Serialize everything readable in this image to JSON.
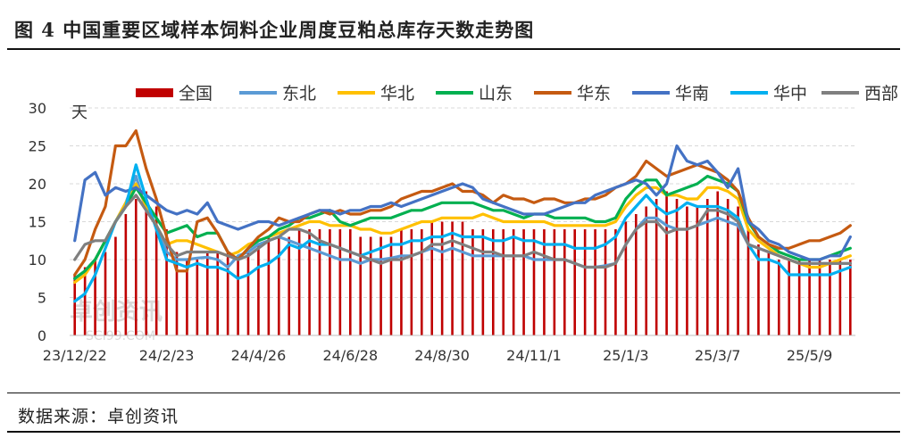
{
  "header": {
    "title": "图 4  中国重要区域样本饲料企业周度豆粕总库存天数走势图"
  },
  "footer": {
    "source": "数据来源：卓创资讯"
  },
  "watermark": {
    "line1": "卓创资讯",
    "line2": "SCI99.COM"
  },
  "chart_data": {
    "type": "bar+line",
    "unit": "天",
    "ylim": [
      0,
      30
    ],
    "yticks": [
      "0",
      "5",
      "10",
      "15",
      "20",
      "25",
      "30"
    ],
    "xtick_labels": [
      "23/12/22",
      "24/2/23",
      "24/4/26",
      "24/6/28",
      "24/8/30",
      "24/11/1",
      "25/1/3",
      "25/3/7",
      "25/5/9"
    ],
    "xtick_indices": [
      0,
      9,
      18,
      27,
      36,
      45,
      54,
      63,
      72
    ],
    "legend_position": "top",
    "grid": "horizontal dashed",
    "series": [
      {
        "name": "全国",
        "kind": "bar",
        "color": "#c00000",
        "values": [
          8,
          9,
          10,
          11,
          13,
          16,
          18,
          19,
          17,
          14,
          11,
          10,
          10,
          11,
          11,
          11,
          10,
          11,
          12,
          13,
          13,
          13,
          14,
          14,
          14,
          14,
          14,
          14,
          13,
          13,
          13,
          13,
          14,
          14,
          14,
          15,
          15,
          15,
          15,
          14,
          14,
          14,
          14,
          14,
          14,
          14,
          14,
          14,
          14,
          14,
          14,
          14,
          14,
          14,
          15,
          16,
          17,
          18,
          19,
          18,
          17,
          17,
          18,
          19,
          18,
          17,
          14,
          12,
          11,
          10,
          10,
          10,
          10,
          10,
          10,
          10,
          10
        ]
      },
      {
        "name": "东北",
        "kind": "line",
        "color": "#5b9bd5",
        "values": [
          7.5,
          8.5,
          10.0,
          12.5,
          15.0,
          17.5,
          21.0,
          16.5,
          14.5,
          11.0,
          10.0,
          10.0,
          10.2,
          10.3,
          10.0,
          9.0,
          10.5,
          11.0,
          12.0,
          12.5,
          13.0,
          12.5,
          12.0,
          11.5,
          11.0,
          10.5,
          10.0,
          10.0,
          9.5,
          10.0,
          10.0,
          10.2,
          10.5,
          10.5,
          11.0,
          11.5,
          11.0,
          11.5,
          11.0,
          10.5,
          10.5,
          10.5,
          10.5,
          10.5,
          10.5,
          10.0,
          10.0,
          10.0,
          10.0,
          9.5,
          9.0,
          9.0,
          9.2,
          9.5,
          12.0,
          14.0,
          15.5,
          15.5,
          14.5,
          14.0,
          14.0,
          14.5,
          15.0,
          15.5,
          15.0,
          14.5,
          12.0,
          11.5,
          11.0,
          10.5,
          10.0,
          9.5,
          9.5,
          9.5,
          9.5,
          9.5,
          9.5
        ]
      },
      {
        "name": "华北",
        "kind": "line",
        "color": "#ffc000",
        "values": [
          7.0,
          8.0,
          10.0,
          12.5,
          15.0,
          17.5,
          20.0,
          17.0,
          14.5,
          12.0,
          12.5,
          12.5,
          12.0,
          11.5,
          11.0,
          10.5,
          11.0,
          12.0,
          12.5,
          13.0,
          13.5,
          14.0,
          14.5,
          15.0,
          15.0,
          14.5,
          14.5,
          14.5,
          14.0,
          14.0,
          13.5,
          13.5,
          14.0,
          14.5,
          15.0,
          15.0,
          15.5,
          15.5,
          15.5,
          15.5,
          16.0,
          15.5,
          15.0,
          15.0,
          15.0,
          15.0,
          15.0,
          14.5,
          14.5,
          14.5,
          14.5,
          14.5,
          14.5,
          15.0,
          17.0,
          18.5,
          19.5,
          19.5,
          18.5,
          18.5,
          18.0,
          18.0,
          19.5,
          19.5,
          19.0,
          18.0,
          14.0,
          12.5,
          11.5,
          10.5,
          10.0,
          9.5,
          9.0,
          9.0,
          9.5,
          10.0,
          10.5
        ]
      },
      {
        "name": "山东",
        "kind": "line",
        "color": "#00b050",
        "values": [
          7.5,
          8.5,
          10.0,
          12.5,
          15.0,
          17.0,
          19.5,
          17.5,
          15.5,
          13.5,
          14.0,
          14.5,
          13.0,
          13.5,
          13.5,
          11.0,
          10.0,
          11.5,
          12.5,
          13.0,
          14.0,
          14.5,
          15.5,
          15.5,
          16.0,
          16.5,
          15.0,
          14.5,
          15.0,
          15.5,
          15.5,
          15.5,
          16.0,
          16.5,
          16.5,
          17.0,
          17.5,
          17.5,
          17.5,
          17.5,
          17.0,
          16.5,
          16.5,
          16.0,
          15.5,
          16.0,
          16.0,
          15.5,
          15.5,
          15.5,
          15.5,
          15.0,
          15.0,
          15.5,
          18.0,
          19.5,
          20.5,
          20.5,
          18.5,
          19.0,
          19.5,
          20.0,
          21.0,
          20.5,
          20.0,
          19.0,
          15.0,
          13.0,
          12.0,
          11.0,
          10.5,
          10.0,
          10.0,
          10.0,
          10.5,
          11.0,
          11.5
        ]
      },
      {
        "name": "华东",
        "kind": "line",
        "color": "#c55a11",
        "values": [
          8.0,
          10.0,
          14.0,
          17.0,
          25.0,
          25.0,
          27.0,
          22.0,
          18.0,
          13.0,
          8.5,
          8.5,
          15.0,
          15.5,
          13.5,
          11.0,
          10.0,
          11.5,
          13.0,
          14.0,
          15.5,
          15.0,
          15.0,
          16.0,
          16.5,
          16.0,
          16.5,
          16.0,
          16.0,
          16.5,
          16.5,
          17.0,
          18.0,
          18.5,
          19.0,
          19.0,
          19.5,
          20.0,
          19.0,
          19.0,
          18.5,
          17.5,
          18.5,
          18.0,
          18.0,
          17.5,
          18.0,
          18.0,
          17.5,
          17.5,
          18.0,
          18.0,
          18.5,
          19.5,
          20.0,
          21.0,
          23.0,
          22.0,
          21.0,
          21.5,
          22.0,
          22.5,
          22.0,
          21.5,
          20.5,
          19.0,
          15.5,
          13.0,
          12.0,
          11.5,
          11.5,
          12.0,
          12.5,
          12.5,
          13.0,
          13.5,
          14.5
        ]
      },
      {
        "name": "华南",
        "kind": "line",
        "color": "#4472c4",
        "values": [
          12.5,
          20.5,
          21.5,
          18.5,
          19.5,
          19.0,
          19.5,
          18.5,
          17.5,
          16.5,
          16.0,
          16.5,
          16.0,
          17.5,
          15.0,
          14.5,
          14.0,
          14.5,
          15.0,
          15.0,
          14.5,
          15.0,
          15.5,
          16.0,
          16.5,
          16.5,
          16.0,
          16.5,
          16.5,
          17.0,
          17.0,
          17.5,
          17.0,
          17.5,
          18.0,
          18.5,
          19.0,
          19.5,
          20.0,
          19.5,
          18.0,
          17.5,
          17.0,
          16.5,
          16.0,
          16.0,
          16.0,
          16.5,
          17.0,
          17.5,
          17.5,
          18.5,
          19.0,
          19.5,
          20.0,
          20.5,
          20.0,
          18.5,
          20.0,
          25.0,
          23.0,
          22.5,
          23.0,
          21.5,
          19.5,
          22.0,
          15.0,
          14.0,
          12.5,
          12.0,
          11.0,
          10.5,
          10.0,
          10.0,
          10.5,
          10.5,
          13.0
        ]
      },
      {
        "name": "华中",
        "kind": "line",
        "color": "#00b0f0",
        "values": [
          4.5,
          5.5,
          8.0,
          11.5,
          15.0,
          17.0,
          22.5,
          18.0,
          14.0,
          10.0,
          9.5,
          9.0,
          9.5,
          9.0,
          9.0,
          8.5,
          7.5,
          8.0,
          9.0,
          9.5,
          10.5,
          12.0,
          11.5,
          12.5,
          12.0,
          12.0,
          11.5,
          11.0,
          10.5,
          11.0,
          11.5,
          12.0,
          12.0,
          12.5,
          12.5,
          13.0,
          13.0,
          13.5,
          13.0,
          13.0,
          13.0,
          12.5,
          12.5,
          13.0,
          12.5,
          12.5,
          12.0,
          12.0,
          12.0,
          11.5,
          11.5,
          11.5,
          12.0,
          13.0,
          15.5,
          17.0,
          18.5,
          17.0,
          16.0,
          16.5,
          17.5,
          17.0,
          17.0,
          17.0,
          16.5,
          15.5,
          12.0,
          10.0,
          10.0,
          9.5,
          8.0,
          8.0,
          8.0,
          8.0,
          8.0,
          8.5,
          9.0
        ]
      },
      {
        "name": "西部",
        "kind": "line",
        "color": "#7f7f7f",
        "values": [
          10.0,
          12.0,
          12.5,
          12.5,
          15.0,
          17.0,
          18.5,
          16.5,
          14.5,
          12.0,
          10.5,
          11.0,
          11.0,
          11.0,
          11.0,
          10.5,
          10.0,
          10.5,
          11.5,
          12.5,
          13.0,
          14.0,
          14.0,
          13.5,
          12.5,
          12.0,
          11.5,
          11.0,
          10.5,
          10.0,
          9.5,
          10.0,
          10.0,
          10.5,
          11.0,
          12.0,
          12.0,
          12.5,
          12.0,
          11.5,
          11.0,
          11.0,
          10.5,
          10.5,
          10.5,
          11.0,
          10.5,
          10.0,
          10.0,
          9.5,
          9.0,
          9.0,
          9.0,
          9.5,
          12.0,
          14.0,
          15.0,
          15.0,
          13.5,
          14.0,
          14.0,
          14.5,
          16.5,
          16.5,
          16.0,
          15.0,
          12.0,
          11.5,
          11.0,
          10.5,
          10.0,
          9.5,
          9.5,
          9.5,
          9.5,
          9.5,
          9.5
        ]
      }
    ]
  }
}
